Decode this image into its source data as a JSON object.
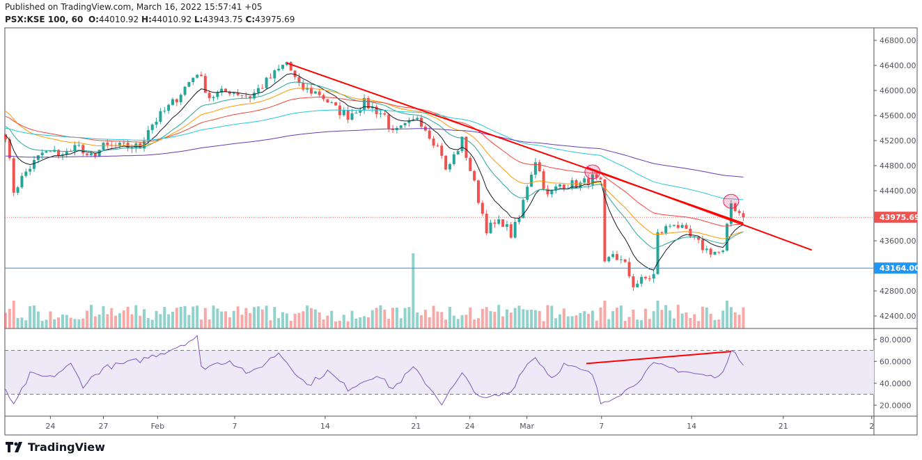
{
  "header": {
    "published": "Published on TradingView.com, March 16, 2022 15:57:41 +05",
    "symbol": "PSX:KSE 100, 60",
    "o_label": "O:",
    "o": "44010.92",
    "h_label": "H:",
    "h": "44010.92",
    "l_label": "L:",
    "l": "43943.75",
    "c_label": "C:",
    "c": "43975.69"
  },
  "logo": {
    "text": "TradingView"
  },
  "colors": {
    "up": "#26a69a",
    "down": "#ef5350",
    "trend": "#ff0000",
    "support": "#2196f3",
    "rsi": "#7e57c2",
    "rsi_band": "#ede9f7"
  },
  "chart_data": {
    "type": "candlestick",
    "price_axis": {
      "range": [
        42200,
        47000
      ],
      "ticks": [
        "46800.00",
        "46400.00",
        "46000.00",
        "45600.00",
        "45200.00",
        "44800.00",
        "44400.00",
        "43600.00",
        "42800.00",
        "42400.00"
      ],
      "tick_values": [
        46800,
        46400,
        46000,
        45600,
        45200,
        44800,
        44400,
        43600,
        42800,
        42400
      ]
    },
    "last_price": {
      "value": 43975.69,
      "label": "43975.69"
    },
    "support_level": {
      "value": 43164,
      "label": "43164.00"
    },
    "x_axis": {
      "range": [
        0,
        212.7
      ],
      "ticks": [
        {
          "i": 11,
          "label": "24"
        },
        {
          "i": 24,
          "label": "27"
        },
        {
          "i": 37.3,
          "label": "Feb"
        },
        {
          "i": 56.2,
          "label": "7"
        },
        {
          "i": 78.4,
          "label": "14"
        },
        {
          "i": 100.7,
          "label": "21"
        },
        {
          "i": 113.9,
          "label": "24"
        },
        {
          "i": 127.9,
          "label": "Mar"
        },
        {
          "i": 146.2,
          "label": "7"
        },
        {
          "i": 168.3,
          "label": "14"
        },
        {
          "i": 190.8,
          "label": "21"
        },
        {
          "i": 212.5,
          "label": "2"
        }
      ]
    },
    "close_keypoints": [
      [
        0,
        45300
      ],
      [
        2,
        44400
      ],
      [
        5,
        44700
      ],
      [
        9,
        45000
      ],
      [
        16,
        45000
      ],
      [
        17,
        45200
      ],
      [
        20,
        44900
      ],
      [
        24,
        45100
      ],
      [
        33,
        45100
      ],
      [
        35,
        45400
      ],
      [
        41,
        45800
      ],
      [
        47,
        46300
      ],
      [
        50,
        45900
      ],
      [
        55,
        46000
      ],
      [
        60,
        45900
      ],
      [
        65,
        46200
      ],
      [
        69,
        46450
      ],
      [
        72,
        46050
      ],
      [
        77,
        45950
      ],
      [
        81,
        45700
      ],
      [
        84,
        45600
      ],
      [
        88,
        45800
      ],
      [
        93,
        45600
      ],
      [
        95,
        45300
      ],
      [
        100,
        45500
      ],
      [
        101,
        45600
      ],
      [
        107,
        45000
      ],
      [
        108,
        44700
      ],
      [
        112,
        45200
      ],
      [
        115,
        44500
      ],
      [
        118,
        43800
      ],
      [
        122,
        43900
      ],
      [
        124,
        43700
      ],
      [
        126,
        43950
      ],
      [
        128,
        44500
      ],
      [
        130,
        44900
      ],
      [
        133,
        44300
      ],
      [
        136,
        44500
      ],
      [
        141,
        44500
      ],
      [
        144,
        44600
      ],
      [
        146,
        44500
      ],
      [
        147,
        43200
      ],
      [
        149,
        43400
      ],
      [
        152,
        43200
      ],
      [
        154,
        42900
      ],
      [
        159,
        43050
      ],
      [
        160,
        43700
      ],
      [
        164,
        43900
      ],
      [
        168,
        43650
      ],
      [
        172,
        43450
      ],
      [
        176,
        43400
      ],
      [
        178,
        44200
      ],
      [
        181,
        43975.69
      ]
    ],
    "moving_averages": [
      {
        "period": 9,
        "color": "#131722",
        "seed": 45300
      },
      {
        "period": 20,
        "color": "#26a69a",
        "seed": 45450
      },
      {
        "period": 30,
        "color": "#ff9800",
        "seed": 45700
      },
      {
        "period": 50,
        "color": "#f44336",
        "seed": 45600
      },
      {
        "period": 100,
        "color": "#26c6da",
        "seed": 45400
      },
      {
        "period": 200,
        "color": "#673ab7",
        "seed": 44950
      }
    ],
    "volume_spike_index": 100,
    "trendlines": [
      {
        "from": [
          69,
          46438
        ],
        "to": [
          181,
          43880
        ]
      },
      {
        "from": [
          142.5,
          44775
        ],
        "to": [
          197.8,
          43452
        ]
      }
    ],
    "highlights": [
      {
        "i": 144,
        "price": 44700
      },
      {
        "i": 178,
        "price": 44230
      }
    ],
    "rsi": {
      "range": [
        10,
        90
      ],
      "ticks": [
        "80.0000",
        "60.0000",
        "40.0000",
        "20.0000"
      ],
      "tick_values": [
        80,
        60,
        40,
        20
      ],
      "band": [
        30,
        70
      ],
      "keypoints": [
        [
          0,
          35
        ],
        [
          2,
          19
        ],
        [
          6,
          48
        ],
        [
          11,
          45
        ],
        [
          16,
          57
        ],
        [
          19,
          38
        ],
        [
          24,
          54
        ],
        [
          33,
          61
        ],
        [
          40,
          70
        ],
        [
          47,
          82
        ],
        [
          48,
          54
        ],
        [
          55,
          61
        ],
        [
          60,
          48
        ],
        [
          67,
          68
        ],
        [
          74,
          38
        ],
        [
          79,
          51
        ],
        [
          84,
          35
        ],
        [
          91,
          48
        ],
        [
          95,
          35
        ],
        [
          100,
          54
        ],
        [
          103,
          41
        ],
        [
          107,
          22
        ],
        [
          112,
          48
        ],
        [
          117,
          25
        ],
        [
          124,
          32
        ],
        [
          127,
          54
        ],
        [
          130,
          64
        ],
        [
          134,
          45
        ],
        [
          137,
          57
        ],
        [
          144,
          48
        ],
        [
          146,
          22
        ],
        [
          153,
          35
        ],
        [
          159,
          57
        ],
        [
          163,
          54
        ],
        [
          170,
          48
        ],
        [
          175,
          45
        ],
        [
          178,
          69
        ],
        [
          181,
          59
        ]
      ],
      "trendline": {
        "from": [
          142.5,
          58
        ],
        "to": [
          178,
          69
        ]
      }
    }
  }
}
